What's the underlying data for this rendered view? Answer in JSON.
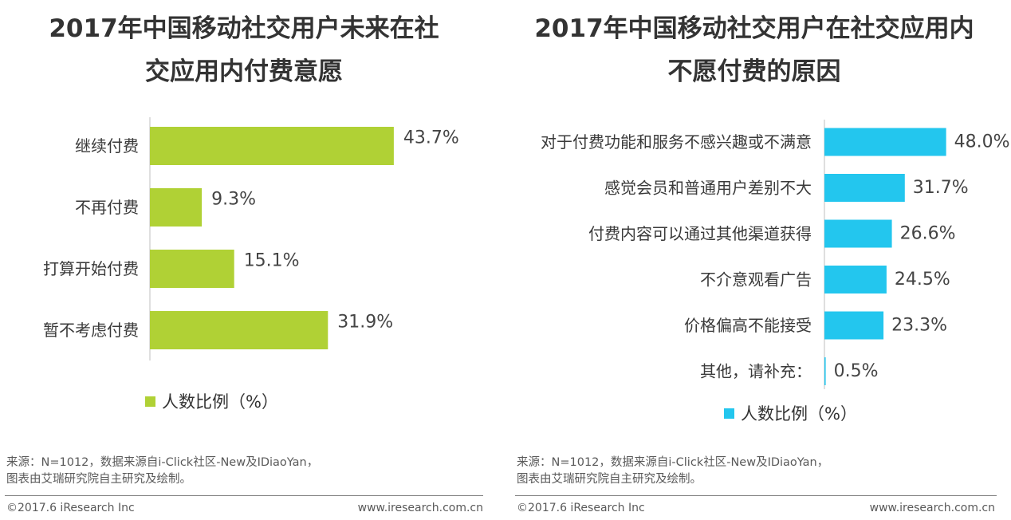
{
  "left": {
    "title_line1": "2017年中国移动社交用户未来在社",
    "title_line2": "交应用内付费意愿",
    "legend": "人数比例（%）",
    "source_line1": "来源：N=1012，数据来源自i-Click社区-New及IDiaoYan，",
    "source_line2": "图表由艾瑞研究院自主研究及绘制。",
    "copyright": "©2017.6 iResearch Inc",
    "website": "www.iresearch.com.cn"
  },
  "right": {
    "title_line1": "2017年中国移动社交用户在社交应用内",
    "title_line2": "不愿付费的原因",
    "legend": "人数比例（%）",
    "source_line1": "来源：N=1012，数据来源自i-Click社区-New及IDiaoYan，",
    "source_line2": "图表由艾瑞研究院自主研究及绘制。",
    "copyright": "©2017.6 iResearch Inc",
    "website": "www.iresearch.com.cn"
  },
  "chart_data": [
    {
      "type": "bar",
      "orientation": "horizontal",
      "title": "2017年中国移动社交用户未来在社交应用内付费意愿",
      "categories": [
        "继续付费",
        "不再付费",
        "打算开始付费",
        "暂不考虑付费"
      ],
      "series": [
        {
          "name": "人数比例（%）",
          "values": [
            43.7,
            9.3,
            15.1,
            31.9
          ],
          "color": "#b0d135"
        }
      ],
      "value_labels": [
        "43.7%",
        "9.3%",
        "15.1%",
        "31.9%"
      ],
      "xlim": [
        0,
        50
      ],
      "grid": false,
      "legend_position": "bottom"
    },
    {
      "type": "bar",
      "orientation": "horizontal",
      "title": "2017年中国移动社交用户在社交应用内不愿付费的原因",
      "categories": [
        "对于付费功能和服务不感兴趣或不满意",
        "感觉会员和普通用户差别不大",
        "付费内容可以通过其他渠道获得",
        "不介意观看广告",
        "价格偏高不能接受",
        "其他，请补充："
      ],
      "series": [
        {
          "name": "人数比例（%）",
          "values": [
            48.0,
            31.7,
            26.6,
            24.5,
            23.3,
            0.5
          ],
          "color": "#23c6ee"
        }
      ],
      "value_labels": [
        "48.0%",
        "31.7%",
        "26.6%",
        "24.5%",
        "23.3%",
        "0.5%"
      ],
      "xlim": [
        0,
        50
      ],
      "grid": false,
      "legend_position": "bottom"
    }
  ]
}
